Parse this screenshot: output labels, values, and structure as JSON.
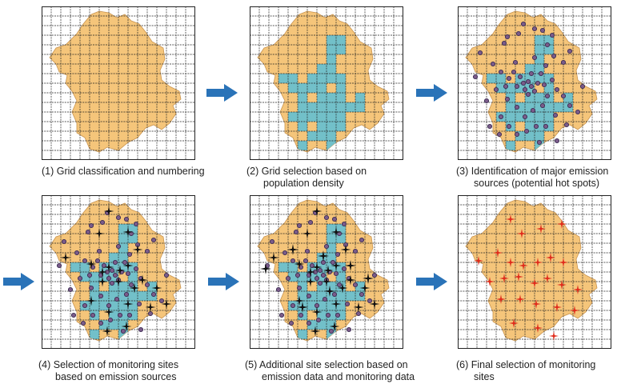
{
  "colors": {
    "region": "#f5c57a",
    "region_edge": "#c89450",
    "selected": "#72c0c9",
    "grid": "#222222",
    "site": "#3a2a52",
    "site_fill": "#7b5c8a",
    "star": "#111111",
    "final_star": "#e02c1c",
    "arrow": "#2a73b8"
  },
  "panels": [
    {
      "id": "p1",
      "caption": [
        "(1) Grid classification and numbering"
      ],
      "layers": []
    },
    {
      "id": "p2",
      "caption": [
        "(2) Grid selection based on",
        "population density"
      ],
      "layers": [
        "cells"
      ]
    },
    {
      "id": "p3",
      "caption": [
        "(3) Identification of major emission",
        "sources (potential hot spots)"
      ],
      "layers": [
        "cells",
        "sites"
      ]
    },
    {
      "id": "p4",
      "caption": [
        "(4) Selection of monitoring sites",
        "based on emission sources"
      ],
      "layers": [
        "cells",
        "sites",
        "stars"
      ]
    },
    {
      "id": "p5",
      "caption": [
        "(5) Additional site selection based on",
        "emission data and monitoring data"
      ],
      "layers": [
        "cells",
        "sites",
        "stars",
        "extra"
      ]
    },
    {
      "id": "p6",
      "caption": [
        "(6) Final selection of monitoring",
        "sites"
      ],
      "layers": [
        "final"
      ]
    }
  ],
  "arrow_icon": "arrow-right-icon"
}
